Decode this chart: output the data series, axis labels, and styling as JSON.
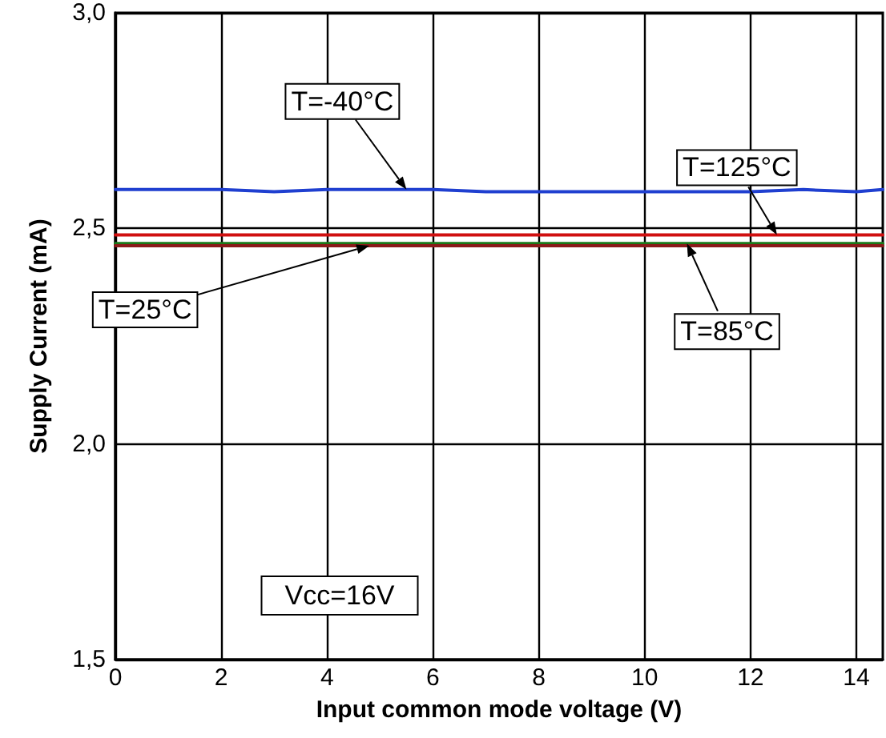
{
  "chart_data": {
    "type": "line",
    "xlabel": "Input common mode voltage (V)",
    "ylabel": "Supply Current (mA)",
    "x": [
      0,
      1,
      2,
      3,
      4,
      5,
      6,
      7,
      8,
      9,
      10,
      11,
      12,
      13,
      14,
      14.5
    ],
    "series": [
      {
        "color": "#1f3fd0",
        "values": [
          2.59,
          2.59,
          2.59,
          2.585,
          2.59,
          2.59,
          2.59,
          2.585,
          2.585,
          2.585,
          2.585,
          2.585,
          2.585,
          2.59,
          2.585,
          2.59
        ]
      },
      {
        "color": "#d01010",
        "values": [
          2.485,
          2.485,
          2.485,
          2.485,
          2.485,
          2.485,
          2.485,
          2.485,
          2.485,
          2.485,
          2.485,
          2.485,
          2.485,
          2.485,
          2.485,
          2.485
        ]
      },
      {
        "color": "#1a7a1a",
        "values": [
          2.465,
          2.465,
          2.465,
          2.465,
          2.465,
          2.465,
          2.465,
          2.465,
          2.465,
          2.465,
          2.465,
          2.465,
          2.465,
          2.465,
          2.465,
          2.465
        ]
      },
      {
        "color": "#8b1a1a",
        "values": [
          2.46,
          2.46,
          2.46,
          2.46,
          2.46,
          2.46,
          2.46,
          2.46,
          2.46,
          2.46,
          2.46,
          2.46,
          2.46,
          2.46,
          2.46,
          2.46
        ]
      }
    ],
    "xlim": [
      0,
      14.5
    ],
    "xticks": [
      0,
      2,
      4,
      6,
      8,
      10,
      12,
      14
    ],
    "ylim": [
      1.5,
      3.0
    ],
    "yticks": [
      {
        "value": 1.5,
        "label": "1,5"
      },
      {
        "value": 2.0,
        "label": "2,0"
      },
      {
        "value": 2.5,
        "label": "2,5"
      },
      {
        "value": 3.0,
        "label": "3,0"
      }
    ],
    "grid": true,
    "marker": "none",
    "line_style": "solid",
    "annotations": [
      {
        "text": "T=-40°C",
        "x": 5.5,
        "y": 2.59
      },
      {
        "text": "T=125°C",
        "x": 12.5,
        "y": 2.485
      },
      {
        "text": "T=85°C",
        "x": 10.8,
        "y": 2.465
      },
      {
        "text": "T=25°C",
        "x": 4.8,
        "y": 2.46
      },
      "Vcc=16V"
    ]
  }
}
